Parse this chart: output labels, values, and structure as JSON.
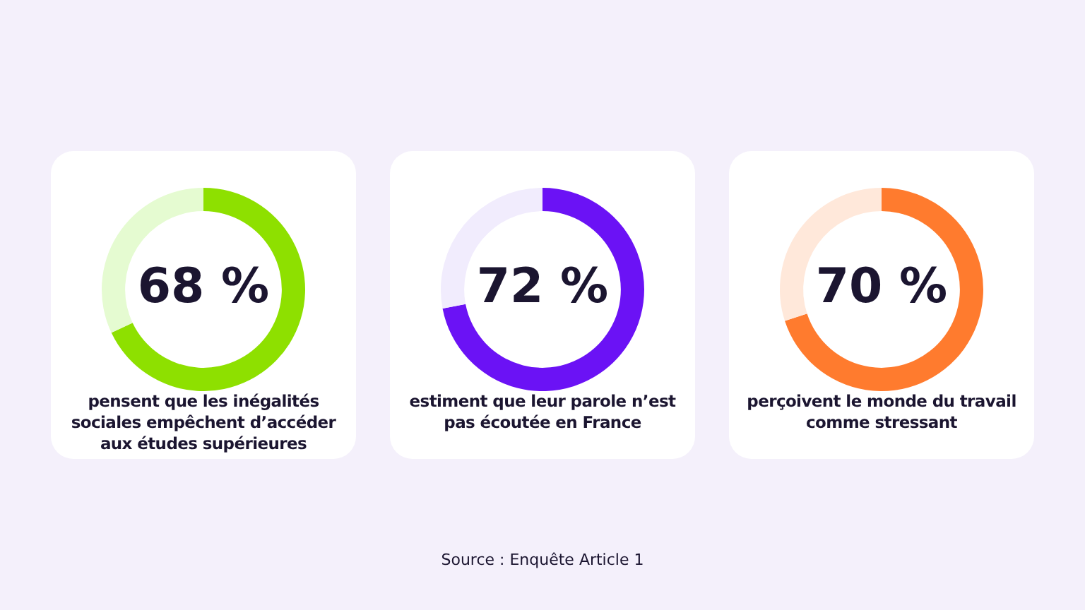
{
  "chart_data": [
    {
      "type": "donut",
      "categories": [
        null,
        null
      ],
      "values": [
        68,
        32
      ],
      "colors": [
        "#8ee000",
        "#e5fbd1"
      ],
      "value_labels": [
        "68 %",
        null
      ],
      "annotations": [
        "pensent que les inégalités sociales empêchent d’accéder aux études supérieures"
      ]
    },
    {
      "type": "donut",
      "categories": [
        null,
        null
      ],
      "values": [
        72,
        28
      ],
      "colors": [
        "#6b12f5",
        "#f1ecfd"
      ],
      "value_labels": [
        "72 %",
        null
      ],
      "annotations": [
        "estiment que leur parole n’est pas écoutée en France"
      ]
    },
    {
      "type": "donut",
      "categories": [
        null,
        null
      ],
      "values": [
        70,
        30
      ],
      "colors": [
        "#ff7b2e",
        "#ffe8da"
      ],
      "value_labels": [
        "70 %",
        null
      ],
      "annotations": [
        "perçoivent le monde du travail comme stressant"
      ]
    },
    {
      "type": "other",
      "annotations": [
        "Source : Enquête Article 1"
      ]
    }
  ]
}
